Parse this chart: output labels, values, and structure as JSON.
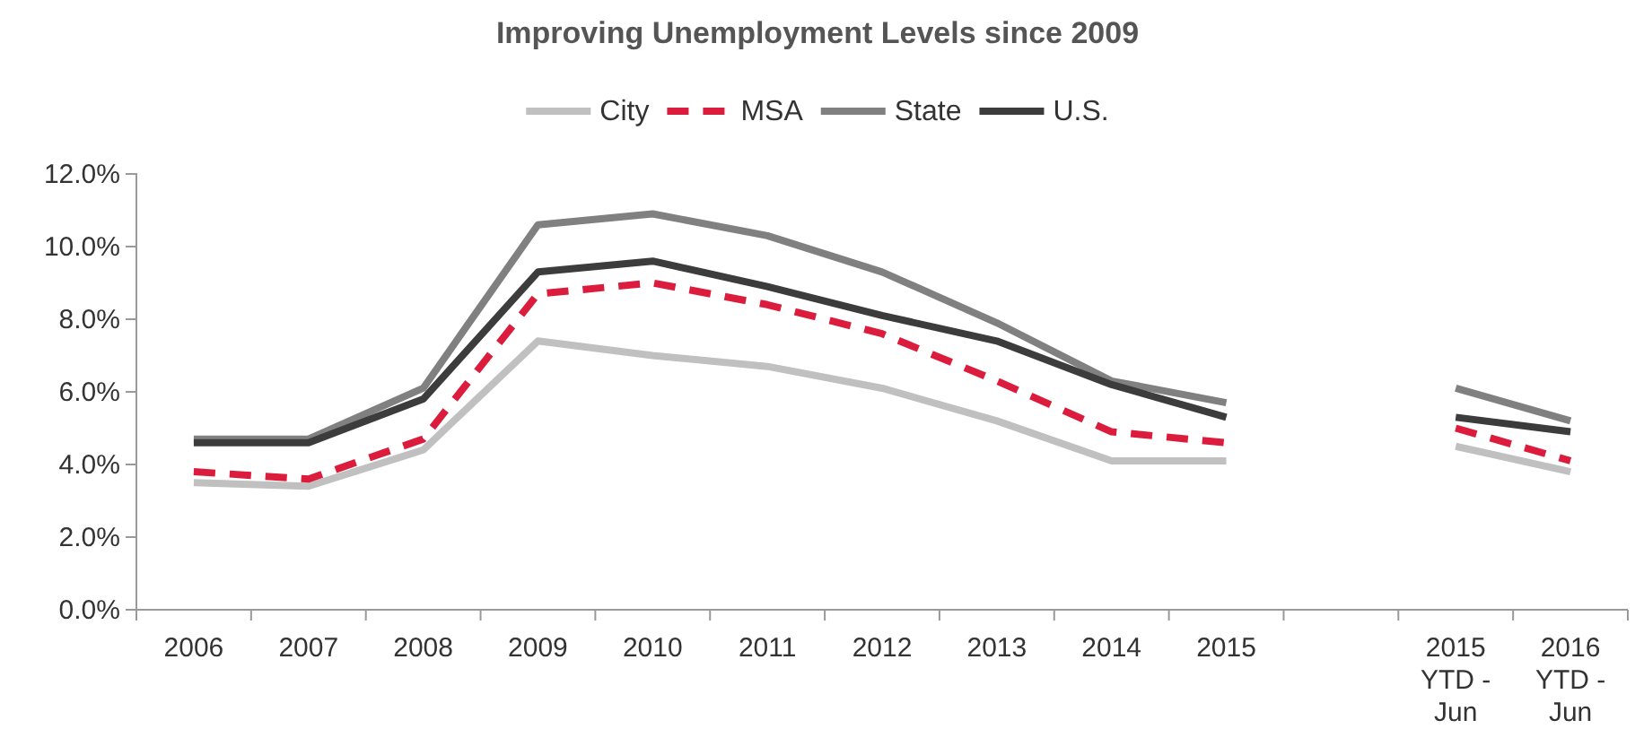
{
  "chart_data": {
    "type": "line",
    "title": "Improving Unemployment Levels since 2009",
    "categories": [
      "2006",
      "2007",
      "2008",
      "2009",
      "2010",
      "2011",
      "2012",
      "2013",
      "2014",
      "2015",
      null,
      "2015 YTD - Jun",
      "2016 YTD - Jun"
    ],
    "series": [
      {
        "name": "City",
        "color": "#c0c0c0",
        "line_style": "solid",
        "values": [
          3.5,
          3.4,
          4.4,
          7.4,
          7.0,
          6.7,
          6.1,
          5.2,
          4.1,
          4.1,
          null,
          4.5,
          3.8
        ]
      },
      {
        "name": "MSA",
        "color": "#dc1c3c",
        "line_style": "dashed",
        "values": [
          3.8,
          3.6,
          4.7,
          8.7,
          9.0,
          8.4,
          7.6,
          6.3,
          4.9,
          4.6,
          null,
          5.0,
          4.1
        ]
      },
      {
        "name": "State",
        "color": "#808080",
        "line_style": "solid",
        "values": [
          4.7,
          4.7,
          6.1,
          10.6,
          10.9,
          10.3,
          9.3,
          7.9,
          6.3,
          5.7,
          null,
          6.1,
          5.2
        ]
      },
      {
        "name": "U.S.",
        "color": "#3c3c3c",
        "line_style": "solid",
        "values": [
          4.6,
          4.6,
          5.8,
          9.3,
          9.6,
          8.9,
          8.1,
          7.4,
          6.2,
          5.3,
          null,
          5.3,
          4.9
        ]
      }
    ],
    "ylim": [
      0,
      12
    ],
    "yticks": [
      {
        "value": 0,
        "label": "0.0%"
      },
      {
        "value": 2,
        "label": "2.0%"
      },
      {
        "value": 4,
        "label": "4.0%"
      },
      {
        "value": 6,
        "label": "6.0%"
      },
      {
        "value": 8,
        "label": "8.0%"
      },
      {
        "value": 10,
        "label": "10.0%"
      },
      {
        "value": 12,
        "label": "12.0%"
      }
    ],
    "grid": false,
    "legend": "top",
    "marker": "none"
  }
}
